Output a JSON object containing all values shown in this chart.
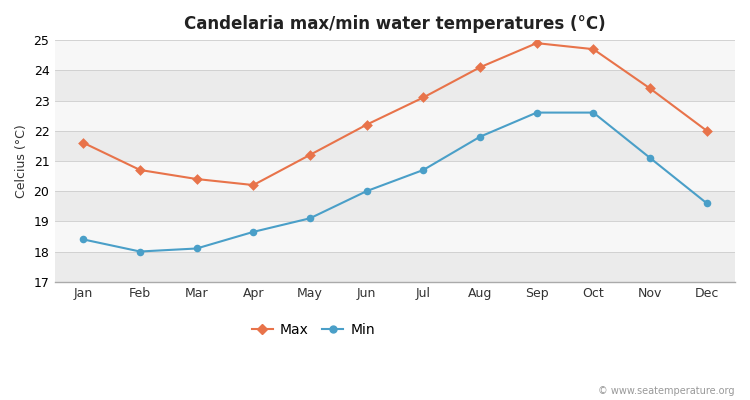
{
  "months": [
    "Jan",
    "Feb",
    "Mar",
    "Apr",
    "May",
    "Jun",
    "Jul",
    "Aug",
    "Sep",
    "Oct",
    "Nov",
    "Dec"
  ],
  "max_temps": [
    21.6,
    20.7,
    20.4,
    20.2,
    21.2,
    22.2,
    23.1,
    24.1,
    24.9,
    24.7,
    23.4,
    22.0
  ],
  "min_temps": [
    18.4,
    18.0,
    18.1,
    18.65,
    19.1,
    20.0,
    20.7,
    21.8,
    22.6,
    22.6,
    21.1,
    19.6
  ],
  "max_color": "#e8734a",
  "min_color": "#4a9fc8",
  "title": "Candelaria max/min water temperatures (°C)",
  "ylabel": "Celcius (°C)",
  "ylim": [
    17,
    25
  ],
  "yticks": [
    17,
    18,
    19,
    20,
    21,
    22,
    23,
    24,
    25
  ],
  "band_color_light": "#ebebeb",
  "band_color_white": "#f7f7f7",
  "fig_bg_color": "#ffffff",
  "watermark": "© www.seatemperature.org",
  "legend_max": "Max",
  "legend_min": "Min"
}
